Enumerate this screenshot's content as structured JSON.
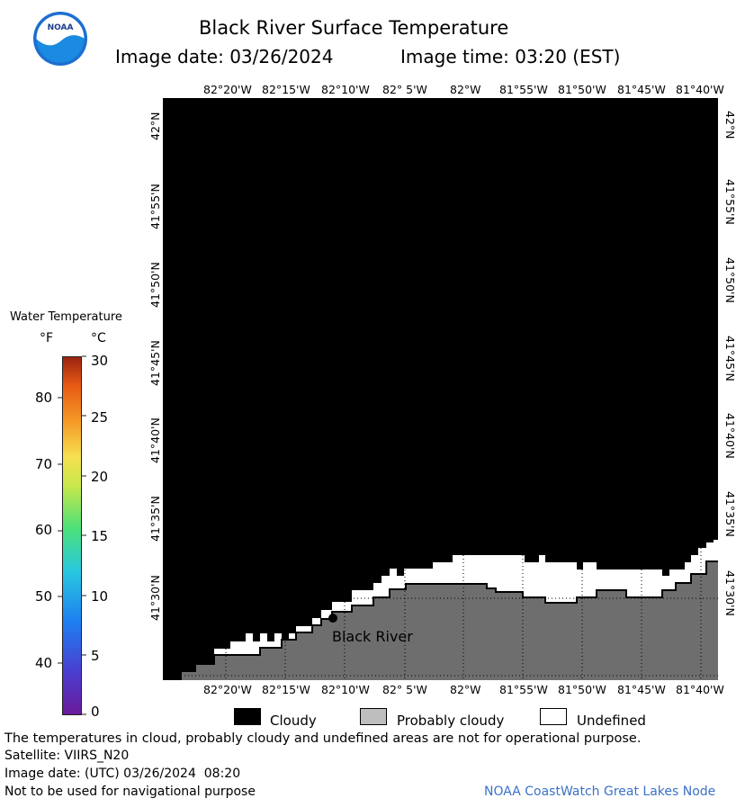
{
  "header": {
    "title": "Black River Surface Temperature",
    "image_date_label": "Image date: 03/26/2024",
    "image_time_label": "Image time: 03:20 (EST)"
  },
  "map": {
    "longitude_ticks": [
      "82°20'W",
      "82°15'W",
      "82°10'W",
      "82° 5'W",
      "82°W",
      "81°55'W",
      "81°50'W",
      "81°45'W",
      "81°40'W"
    ],
    "latitude_ticks": [
      "42°N",
      "41°55'N",
      "41°50'N",
      "41°45'N",
      "41°40'N",
      "41°35'N",
      "41°30'N"
    ],
    "station_label": "Black River",
    "colors": {
      "cloudy": "#000000",
      "land": "#6e6e6e",
      "undefined": "#ffffff",
      "probably_cloudy": "#bebebe"
    }
  },
  "legend": {
    "title": "Water Temperature",
    "unit_f": "°F",
    "unit_c": "°C",
    "f_ticks": [
      "80",
      "70",
      "60",
      "50",
      "40"
    ],
    "c_ticks": [
      "30",
      "25",
      "20",
      "15",
      "10",
      "5",
      "0"
    ],
    "items": [
      {
        "label": "Cloudy",
        "color": "#000000"
      },
      {
        "label": "Probably cloudy",
        "color": "#bebebe"
      },
      {
        "label": "Undefined",
        "color": "#ffffff"
      }
    ]
  },
  "footer": {
    "disclaimer": "The temperatures in cloud, probably cloudy and undefined areas are not for operational purpose.",
    "satellite": "Satellite: VIIRS_N20",
    "utc_date": "Image date: (UTC) 03/26/2024  08:20",
    "nav_warning": "Not to be used for navigational purpose",
    "credit": "NOAA CoastWatch Great Lakes Node"
  },
  "logo": {
    "text": "NOAA"
  }
}
